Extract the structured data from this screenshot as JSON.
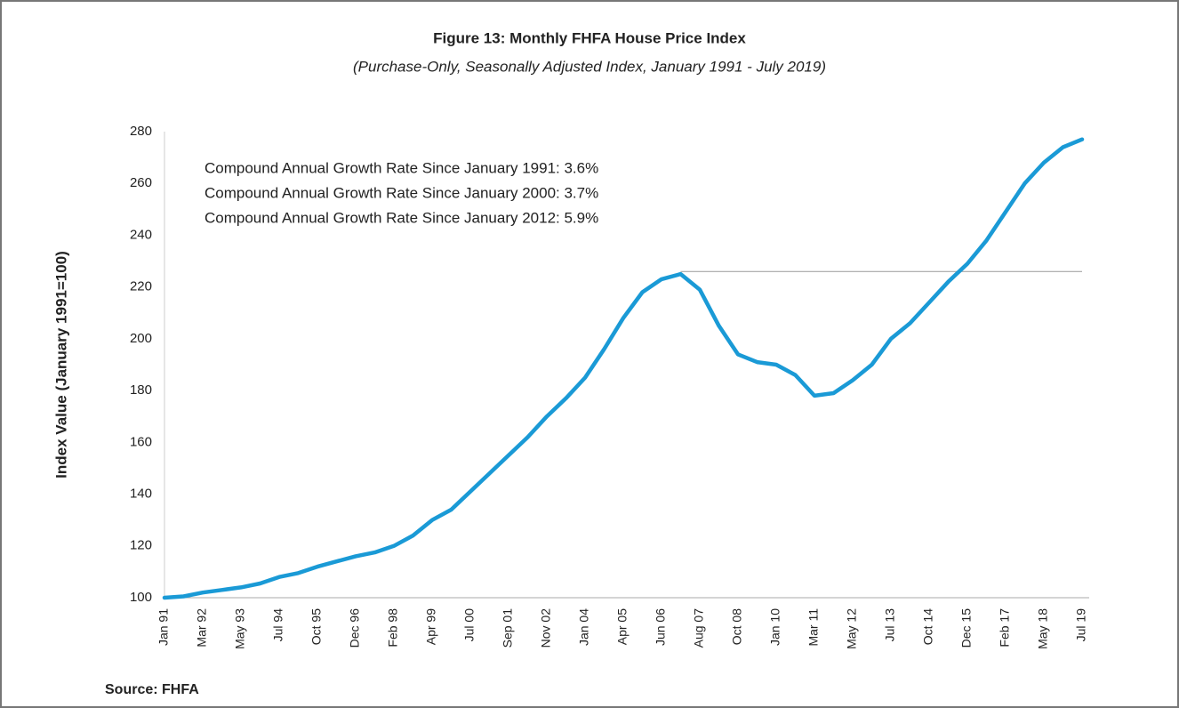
{
  "chart_data": {
    "type": "line",
    "title": "Figure 13:  Monthly FHFA House Price Index",
    "subtitle": "(Purchase-Only, Seasonally Adjusted Index, January 1991 - July 2019)",
    "y_label": "Index Value (January 1991=100)",
    "source": "Source: FHFA",
    "annotations": [
      "Compound Annual Growth Rate Since January 1991:  3.6%",
      "Compound Annual Growth Rate Since January 2000:  3.7%",
      "Compound Annual Growth Rate Since January 2012:  5.9%"
    ],
    "categories": [
      "Jan 91",
      null,
      "Mar 92",
      null,
      "May 93",
      null,
      "Jul 94",
      null,
      "Oct 95",
      null,
      "Dec 96",
      null,
      "Feb 98",
      null,
      "Apr 99",
      null,
      "Jul 00",
      null,
      "Sep 01",
      null,
      "Nov 02",
      null,
      "Jan 04",
      null,
      "Apr 05",
      null,
      "Jun 06",
      null,
      "Aug 07",
      null,
      "Oct 08",
      null,
      "Jan 10",
      null,
      "Mar 11",
      null,
      "May 12",
      null,
      "Jul 13",
      null,
      "Oct 14",
      null,
      "Dec 15",
      null,
      "Feb 17",
      null,
      "May 18",
      null,
      "Jul 19"
    ],
    "series": [
      {
        "name": "FHFA House Price Index",
        "color": "#1a9ad6",
        "values": [
          100,
          100.5,
          102,
          103,
          104,
          105.5,
          108,
          109.5,
          112,
          114,
          116,
          117.5,
          120,
          124,
          130,
          134,
          141,
          148,
          155,
          162,
          170,
          177,
          185,
          196,
          208,
          218,
          223,
          225,
          219,
          205,
          194,
          191,
          190,
          186,
          178,
          179,
          184,
          190,
          200,
          206,
          214,
          222,
          229,
          238,
          249,
          260,
          268,
          274,
          277
        ]
      }
    ],
    "reference_line": 226,
    "ylim": [
      100,
      280
    ],
    "yticks": [
      100,
      120,
      140,
      160,
      180,
      200,
      220,
      240,
      260,
      280
    ],
    "grid": false
  }
}
